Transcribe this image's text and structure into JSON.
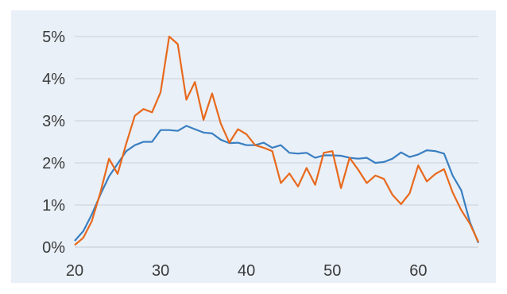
{
  "chart_data": {
    "type": "line",
    "title": "",
    "xlabel": "",
    "ylabel": "",
    "xlim": [
      20,
      67
    ],
    "ylim": [
      0,
      5
    ],
    "grid": true,
    "legend": "none",
    "x_ticks": [
      "20",
      "30",
      "40",
      "50",
      "60"
    ],
    "y_ticks": [
      "0%",
      "1%",
      "2%",
      "3%",
      "4%",
      "5%"
    ],
    "x": [
      20,
      21,
      22,
      23,
      24,
      25,
      26,
      27,
      28,
      29,
      30,
      31,
      32,
      33,
      34,
      35,
      36,
      37,
      38,
      39,
      40,
      41,
      42,
      43,
      44,
      45,
      46,
      47,
      48,
      49,
      50,
      51,
      52,
      53,
      54,
      55,
      56,
      57,
      58,
      59,
      60,
      61,
      62,
      63,
      64,
      65,
      66,
      67
    ],
    "series": [
      {
        "color": "#3a7fc1",
        "values": [
          0.15,
          0.38,
          0.78,
          1.25,
          1.68,
          1.98,
          2.28,
          2.42,
          2.5,
          2.5,
          2.78,
          2.78,
          2.76,
          2.88,
          2.8,
          2.72,
          2.7,
          2.55,
          2.47,
          2.48,
          2.42,
          2.42,
          2.48,
          2.36,
          2.42,
          2.24,
          2.22,
          2.24,
          2.12,
          2.18,
          2.18,
          2.17,
          2.12,
          2.1,
          2.12,
          2.0,
          2.02,
          2.1,
          2.25,
          2.14,
          2.2,
          2.3,
          2.28,
          2.22,
          1.7,
          1.35,
          0.6,
          0.1
        ]
      },
      {
        "color": "#e8691c",
        "values": [
          0.05,
          0.22,
          0.62,
          1.3,
          2.1,
          1.74,
          2.46,
          3.12,
          3.28,
          3.2,
          3.68,
          5.0,
          4.82,
          3.5,
          3.92,
          3.02,
          3.65,
          2.94,
          2.48,
          2.8,
          2.68,
          2.42,
          2.36,
          2.28,
          1.52,
          1.75,
          1.44,
          1.88,
          1.48,
          2.24,
          2.28,
          1.4,
          2.12,
          1.84,
          1.52,
          1.7,
          1.62,
          1.24,
          1.02,
          1.28,
          1.94,
          1.56,
          1.74,
          1.85,
          1.3,
          0.88,
          0.56,
          0.12
        ]
      }
    ]
  }
}
